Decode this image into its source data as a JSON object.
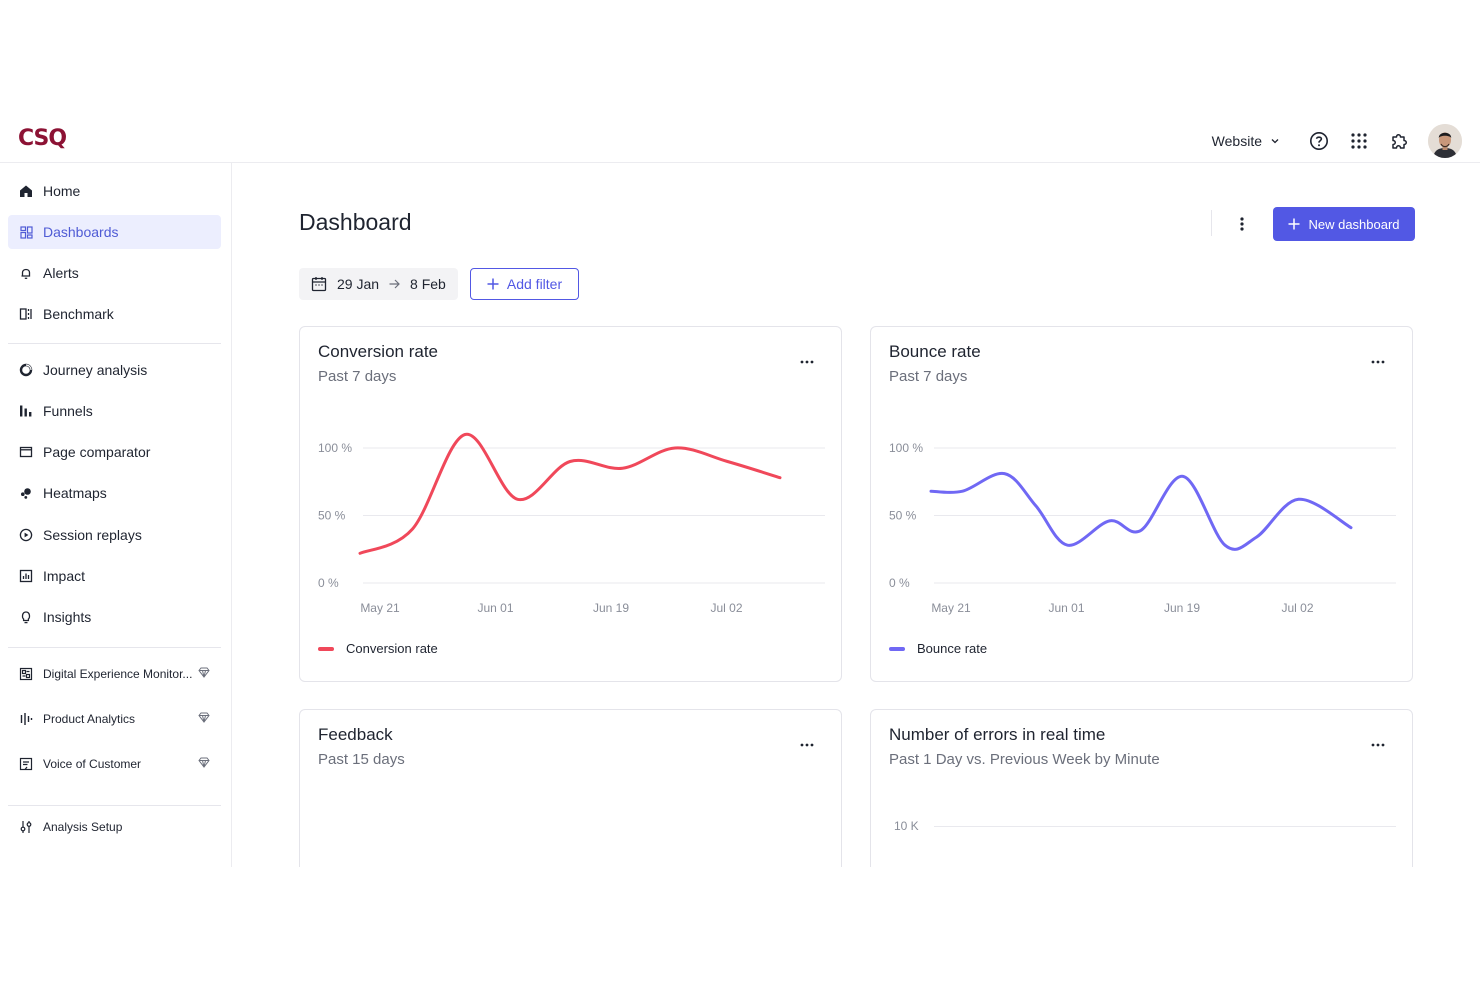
{
  "app": {
    "logo_text": "CSQ",
    "brand_color": "#8c1234",
    "accent_color": "#5258e4"
  },
  "topbar": {
    "site_selector": "Website",
    "icons": [
      "help-icon",
      "apps-grid-icon",
      "integrations-icon",
      "avatar"
    ]
  },
  "sidebar": {
    "primary": [
      {
        "label": "Home",
        "icon": "home-icon"
      },
      {
        "label": "Dashboards",
        "icon": "dashboards-icon",
        "active": true
      },
      {
        "label": "Alerts",
        "icon": "bell-icon"
      },
      {
        "label": "Benchmark",
        "icon": "benchmark-icon"
      }
    ],
    "analysis": [
      {
        "label": "Journey analysis",
        "icon": "journey-icon"
      },
      {
        "label": "Funnels",
        "icon": "funnel-icon"
      },
      {
        "label": "Page comparator",
        "icon": "page-comparator-icon"
      },
      {
        "label": "Heatmaps",
        "icon": "heatmap-icon"
      },
      {
        "label": "Session replays",
        "icon": "play-icon"
      },
      {
        "label": "Impact",
        "icon": "impact-icon"
      },
      {
        "label": "Insights",
        "icon": "lightbulb-icon"
      }
    ],
    "products": [
      {
        "label": "Digital Experience Monitor...",
        "icon": "dem-icon",
        "badge": "gem-icon"
      },
      {
        "label": "Product Analytics",
        "icon": "product-analytics-icon",
        "badge": "gem-icon"
      },
      {
        "label": "Voice of Customer",
        "icon": "voc-icon",
        "badge": "gem-icon"
      }
    ],
    "setup": [
      {
        "label": "Analysis Setup",
        "icon": "sliders-icon"
      }
    ]
  },
  "main": {
    "title": "Dashboard",
    "new_button": "New dashboard",
    "date_from": "29 Jan",
    "date_to": "8 Feb",
    "add_filter": "Add filter"
  },
  "cards": {
    "conversion": {
      "title": "Conversion rate",
      "subtitle": "Past 7 days",
      "legend": "Conversion rate",
      "color": "#f0485a"
    },
    "bounce": {
      "title": "Bounce rate",
      "subtitle": "Past 7 days",
      "legend": "Bounce rate",
      "color": "#7068f4"
    },
    "feedback": {
      "title": "Feedback",
      "subtitle": "Past 15 days"
    },
    "errors": {
      "title": "Number of errors in real time",
      "subtitle": "Past 1 Day vs. Previous Week by Minute",
      "ytick": "10 K"
    }
  },
  "chart_data": [
    {
      "type": "line",
      "title": "Conversion rate",
      "x": [
        0,
        5,
        10,
        15,
        20,
        25,
        30,
        35,
        40
      ],
      "xticks": [
        {
          "pos": 0,
          "label": "May 21"
        },
        {
          "pos": 11,
          "label": "Jun 01"
        },
        {
          "pos": 22,
          "label": "Jun 19"
        },
        {
          "pos": 33,
          "label": "Jul 02"
        }
      ],
      "yticks": [
        "0 %",
        "50 %",
        "100 %"
      ],
      "ylim": [
        0,
        100
      ],
      "series": [
        {
          "name": "Conversion rate",
          "values": [
            22,
            40,
            110,
            62,
            90,
            85,
            100,
            90,
            78
          ]
        }
      ]
    },
    {
      "type": "line",
      "title": "Bounce rate",
      "x": [
        0,
        3,
        7,
        10,
        13,
        17,
        20,
        24,
        28,
        31,
        35,
        40
      ],
      "xticks": [
        {
          "pos": 0,
          "label": "May 21"
        },
        {
          "pos": 11,
          "label": "Jun 01"
        },
        {
          "pos": 22,
          "label": "Jun 19"
        },
        {
          "pos": 33,
          "label": "Jul 02"
        }
      ],
      "yticks": [
        "0 %",
        "50 %",
        "100 %"
      ],
      "ylim": [
        0,
        100
      ],
      "series": [
        {
          "name": "Bounce rate",
          "values": [
            68,
            68,
            81,
            57,
            28,
            46,
            39,
            79,
            28,
            34,
            62,
            41
          ]
        }
      ]
    }
  ]
}
